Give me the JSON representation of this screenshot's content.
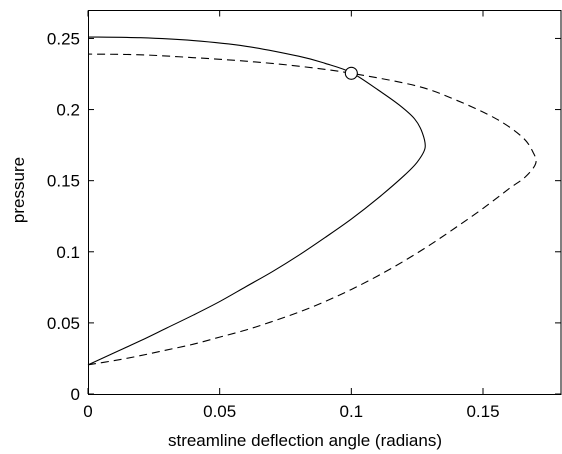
{
  "chart_data": {
    "type": "line",
    "title": "",
    "xlabel": "streamline deflection angle (radians)",
    "ylabel": "pressure",
    "xlim": [
      0,
      0.18
    ],
    "ylim": [
      0,
      0.27
    ],
    "x_ticks": [
      {
        "value": 0,
        "label": "0"
      },
      {
        "value": 0.05,
        "label": "0.05"
      },
      {
        "value": 0.1,
        "label": "0.1"
      },
      {
        "value": 0.15,
        "label": "0.15"
      }
    ],
    "y_ticks": [
      {
        "value": 0,
        "label": "0"
      },
      {
        "value": 0.05,
        "label": "0.05"
      },
      {
        "value": 0.1,
        "label": "0.1"
      },
      {
        "value": 0.15,
        "label": "0.15"
      },
      {
        "value": 0.2,
        "label": "0.2"
      },
      {
        "value": 0.25,
        "label": "0.25"
      }
    ],
    "grid": false,
    "series": [
      {
        "style": "solid",
        "color": "#000000",
        "points": [
          [
            0.0,
            0.0205
          ],
          [
            0.01,
            0.029
          ],
          [
            0.02,
            0.0375
          ],
          [
            0.03,
            0.0465
          ],
          [
            0.04,
            0.0555
          ],
          [
            0.05,
            0.065
          ],
          [
            0.06,
            0.0755
          ],
          [
            0.07,
            0.086
          ],
          [
            0.08,
            0.0975
          ],
          [
            0.09,
            0.11
          ],
          [
            0.1,
            0.123
          ],
          [
            0.11,
            0.1375
          ],
          [
            0.12,
            0.1535
          ],
          [
            0.125,
            0.163
          ],
          [
            0.128,
            0.173
          ],
          [
            0.127,
            0.1835
          ],
          [
            0.124,
            0.1935
          ],
          [
            0.118,
            0.2035
          ],
          [
            0.11,
            0.214
          ],
          [
            0.1,
            0.226
          ],
          [
            0.09,
            0.2325
          ],
          [
            0.08,
            0.2375
          ],
          [
            0.06,
            0.2445
          ],
          [
            0.04,
            0.2485
          ],
          [
            0.02,
            0.2505
          ],
          [
            0.0,
            0.251
          ]
        ]
      },
      {
        "style": "dashed",
        "color": "#000000",
        "points": [
          [
            0.0,
            0.0205
          ],
          [
            0.01,
            0.0235
          ],
          [
            0.02,
            0.027
          ],
          [
            0.03,
            0.031
          ],
          [
            0.04,
            0.035
          ],
          [
            0.05,
            0.04
          ],
          [
            0.06,
            0.045
          ],
          [
            0.07,
            0.051
          ],
          [
            0.08,
            0.0575
          ],
          [
            0.09,
            0.065
          ],
          [
            0.1,
            0.0735
          ],
          [
            0.11,
            0.083
          ],
          [
            0.12,
            0.0935
          ],
          [
            0.13,
            0.105
          ],
          [
            0.14,
            0.1175
          ],
          [
            0.15,
            0.1305
          ],
          [
            0.16,
            0.1445
          ],
          [
            0.166,
            0.1525
          ],
          [
            0.17,
            0.162
          ],
          [
            0.169,
            0.17
          ],
          [
            0.165,
            0.1805
          ],
          [
            0.155,
            0.1935
          ],
          [
            0.14,
            0.2065
          ],
          [
            0.125,
            0.2165
          ],
          [
            0.1,
            0.2255
          ],
          [
            0.08,
            0.2305
          ],
          [
            0.06,
            0.234
          ],
          [
            0.04,
            0.2365
          ],
          [
            0.02,
            0.2385
          ],
          [
            0.0,
            0.239
          ]
        ]
      }
    ],
    "markers": [
      {
        "x": 0.1,
        "y": 0.2255,
        "shape": "open-circle"
      }
    ]
  }
}
